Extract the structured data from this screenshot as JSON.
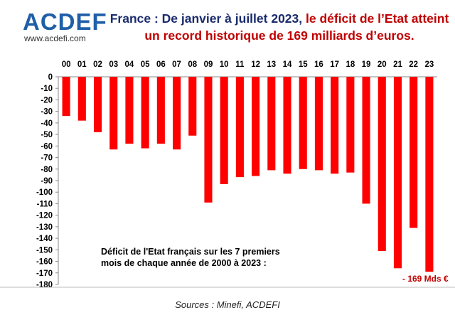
{
  "header": {
    "logo_text": "ACDEFI",
    "logo_url": "www.acdefi.com",
    "title_part1": "France : De janvier à juillet 2023,",
    "title_part2": " le déficit de l’Etat atteint",
    "title_line2": "un record historique de 169 milliards d’euros."
  },
  "chart_data": {
    "type": "bar",
    "categories": [
      "00",
      "01",
      "02",
      "03",
      "04",
      "05",
      "06",
      "07",
      "08",
      "09",
      "10",
      "11",
      "12",
      "13",
      "14",
      "15",
      "16",
      "17",
      "18",
      "19",
      "20",
      "21",
      "22",
      "23"
    ],
    "values": [
      -34,
      -38,
      -48,
      -63,
      -58,
      -62,
      -58,
      -63,
      -51,
      -109,
      -93,
      -87,
      -86,
      -81,
      -84,
      -80,
      -81,
      -84,
      -83,
      -110,
      -151,
      -166,
      -131,
      -169
    ],
    "ylim": [
      -180,
      0
    ],
    "yticks": [
      0,
      -10,
      -20,
      -30,
      -40,
      -50,
      -60,
      -70,
      -80,
      -90,
      -100,
      -110,
      -120,
      -130,
      -140,
      -150,
      -160,
      -170,
      -180
    ],
    "bar_color": "#ff0000",
    "annotation_line1": "Déficit de l'Etat français sur les 7 premiers",
    "annotation_line2": "mois de chaque année de 2000 à 2023 :",
    "callout": "- 169 Mds €",
    "source": "Sources : Minefi, ACDEFI"
  }
}
